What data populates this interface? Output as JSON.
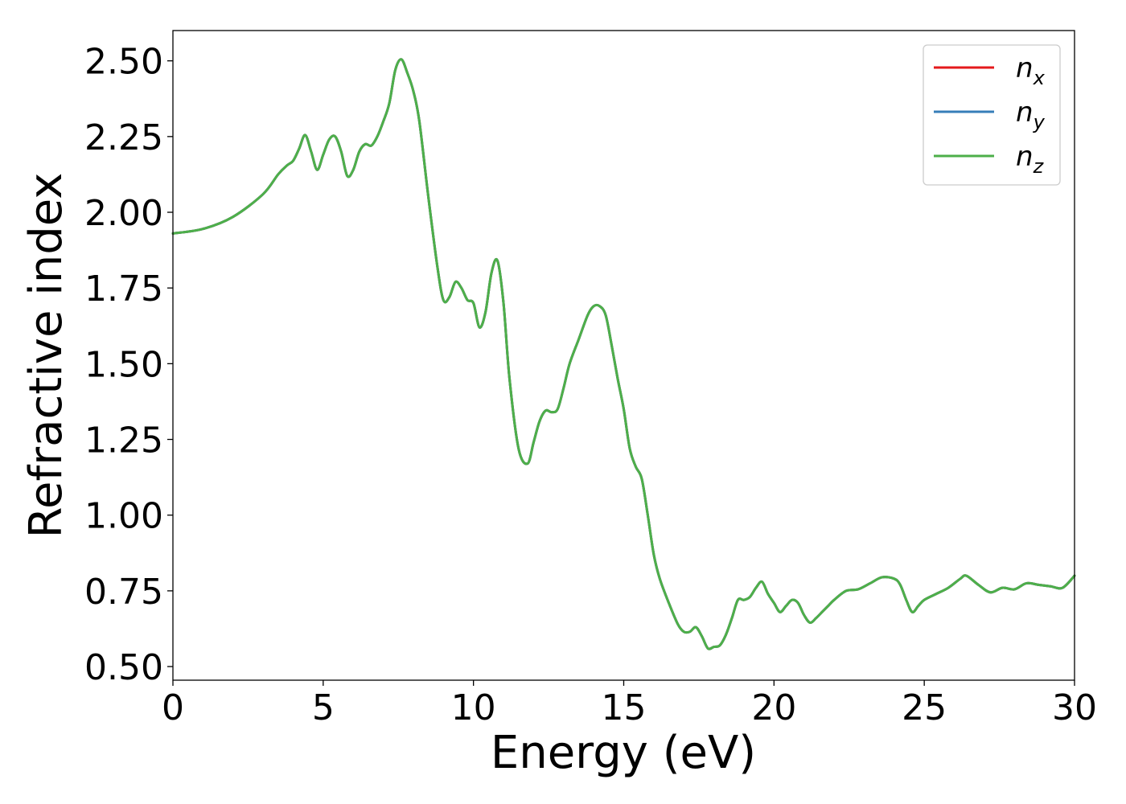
{
  "chart_data": {
    "type": "line",
    "title": "",
    "xlabel": "Energy (eV)",
    "ylabel": "Refractive index",
    "xlim": [
      0,
      30
    ],
    "ylim": [
      0.455,
      2.6
    ],
    "xticks": [
      0,
      5,
      10,
      15,
      20,
      25,
      30
    ],
    "xtick_labels": [
      "0",
      "5",
      "10",
      "15",
      "20",
      "25",
      "30"
    ],
    "yticks": [
      0.5,
      0.75,
      1.0,
      1.25,
      1.5,
      1.75,
      2.0,
      2.25,
      2.5
    ],
    "ytick_labels": [
      "0.50",
      "0.75",
      "1.00",
      "1.25",
      "1.50",
      "1.75",
      "2.00",
      "2.25",
      "2.50"
    ],
    "grid": false,
    "legend_position": "top-right",
    "x": [
      0,
      1,
      2,
      3,
      3.5,
      3.8,
      4.0,
      4.2,
      4.4,
      4.6,
      4.8,
      5.0,
      5.2,
      5.4,
      5.6,
      5.8,
      6.0,
      6.2,
      6.4,
      6.6,
      6.8,
      7.0,
      7.2,
      7.4,
      7.6,
      7.8,
      8.0,
      8.2,
      8.5,
      8.8,
      9.0,
      9.2,
      9.4,
      9.6,
      9.8,
      10.0,
      10.2,
      10.4,
      10.6,
      10.8,
      11.0,
      11.2,
      11.5,
      11.8,
      12.0,
      12.2,
      12.4,
      12.6,
      12.8,
      13.0,
      13.2,
      13.5,
      13.8,
      14.0,
      14.2,
      14.4,
      14.6,
      14.8,
      15.0,
      15.2,
      15.4,
      15.6,
      15.8,
      16.0,
      16.2,
      16.5,
      16.8,
      17.0,
      17.2,
      17.4,
      17.6,
      17.8,
      18.0,
      18.2,
      18.4,
      18.6,
      18.8,
      19.0,
      19.2,
      19.4,
      19.6,
      19.8,
      20.0,
      20.2,
      20.4,
      20.6,
      20.8,
      21.0,
      21.2,
      21.4,
      21.6,
      21.8,
      22.0,
      22.4,
      22.8,
      23.2,
      23.6,
      24.0,
      24.2,
      24.4,
      24.6,
      24.8,
      25.0,
      25.4,
      25.8,
      26.2,
      26.4,
      26.8,
      27.2,
      27.6,
      28.0,
      28.4,
      28.8,
      29.2,
      29.6,
      30.0
    ],
    "series": [
      {
        "name": "n",
        "subscript": "x",
        "color": "#e41a1c",
        "y": [
          1.93,
          1.945,
          1.985,
          2.06,
          2.125,
          2.155,
          2.17,
          2.21,
          2.255,
          2.2,
          2.14,
          2.19,
          2.24,
          2.25,
          2.2,
          2.12,
          2.14,
          2.2,
          2.225,
          2.22,
          2.25,
          2.3,
          2.36,
          2.47,
          2.505,
          2.46,
          2.4,
          2.3,
          2.05,
          1.82,
          1.71,
          1.72,
          1.77,
          1.75,
          1.71,
          1.7,
          1.62,
          1.67,
          1.8,
          1.84,
          1.7,
          1.45,
          1.22,
          1.17,
          1.24,
          1.31,
          1.345,
          1.34,
          1.35,
          1.42,
          1.5,
          1.58,
          1.66,
          1.69,
          1.69,
          1.66,
          1.56,
          1.45,
          1.35,
          1.22,
          1.16,
          1.12,
          1.0,
          0.87,
          0.79,
          0.71,
          0.64,
          0.615,
          0.615,
          0.63,
          0.6,
          0.56,
          0.565,
          0.57,
          0.605,
          0.66,
          0.72,
          0.72,
          0.73,
          0.76,
          0.78,
          0.74,
          0.71,
          0.68,
          0.7,
          0.72,
          0.71,
          0.67,
          0.645,
          0.66,
          0.68,
          0.7,
          0.72,
          0.75,
          0.755,
          0.775,
          0.795,
          0.79,
          0.77,
          0.72,
          0.68,
          0.7,
          0.72,
          0.74,
          0.76,
          0.79,
          0.8,
          0.77,
          0.745,
          0.76,
          0.755,
          0.775,
          0.77,
          0.765,
          0.76,
          0.8
        ]
      },
      {
        "name": "n",
        "subscript": "y",
        "color": "#377eb8",
        "y": [
          1.93,
          1.945,
          1.985,
          2.06,
          2.125,
          2.155,
          2.17,
          2.21,
          2.255,
          2.2,
          2.14,
          2.19,
          2.24,
          2.25,
          2.2,
          2.12,
          2.14,
          2.2,
          2.225,
          2.22,
          2.25,
          2.3,
          2.36,
          2.47,
          2.505,
          2.46,
          2.4,
          2.3,
          2.05,
          1.82,
          1.71,
          1.72,
          1.77,
          1.75,
          1.71,
          1.7,
          1.62,
          1.67,
          1.8,
          1.84,
          1.7,
          1.45,
          1.22,
          1.17,
          1.24,
          1.31,
          1.345,
          1.34,
          1.35,
          1.42,
          1.5,
          1.58,
          1.66,
          1.69,
          1.69,
          1.66,
          1.56,
          1.45,
          1.35,
          1.22,
          1.16,
          1.12,
          1.0,
          0.87,
          0.79,
          0.71,
          0.64,
          0.615,
          0.615,
          0.63,
          0.6,
          0.56,
          0.565,
          0.57,
          0.605,
          0.66,
          0.72,
          0.72,
          0.73,
          0.76,
          0.78,
          0.74,
          0.71,
          0.68,
          0.7,
          0.72,
          0.71,
          0.67,
          0.645,
          0.66,
          0.68,
          0.7,
          0.72,
          0.75,
          0.755,
          0.775,
          0.795,
          0.79,
          0.77,
          0.72,
          0.68,
          0.7,
          0.72,
          0.74,
          0.76,
          0.79,
          0.8,
          0.77,
          0.745,
          0.76,
          0.755,
          0.775,
          0.77,
          0.765,
          0.76,
          0.8
        ]
      },
      {
        "name": "n",
        "subscript": "z",
        "color": "#4daf4a",
        "y": [
          1.93,
          1.945,
          1.985,
          2.06,
          2.125,
          2.155,
          2.17,
          2.21,
          2.255,
          2.2,
          2.14,
          2.19,
          2.24,
          2.25,
          2.2,
          2.12,
          2.14,
          2.2,
          2.225,
          2.22,
          2.25,
          2.3,
          2.36,
          2.47,
          2.505,
          2.46,
          2.4,
          2.3,
          2.05,
          1.82,
          1.71,
          1.72,
          1.77,
          1.75,
          1.71,
          1.7,
          1.62,
          1.67,
          1.8,
          1.84,
          1.7,
          1.45,
          1.22,
          1.17,
          1.24,
          1.31,
          1.345,
          1.34,
          1.35,
          1.42,
          1.5,
          1.58,
          1.66,
          1.69,
          1.69,
          1.66,
          1.56,
          1.45,
          1.35,
          1.22,
          1.16,
          1.12,
          1.0,
          0.87,
          0.79,
          0.71,
          0.64,
          0.615,
          0.615,
          0.63,
          0.6,
          0.56,
          0.565,
          0.57,
          0.605,
          0.66,
          0.72,
          0.72,
          0.73,
          0.76,
          0.78,
          0.74,
          0.71,
          0.68,
          0.7,
          0.72,
          0.71,
          0.67,
          0.645,
          0.66,
          0.68,
          0.7,
          0.72,
          0.75,
          0.755,
          0.775,
          0.795,
          0.79,
          0.77,
          0.72,
          0.68,
          0.7,
          0.72,
          0.74,
          0.76,
          0.79,
          0.8,
          0.77,
          0.745,
          0.76,
          0.755,
          0.775,
          0.77,
          0.765,
          0.76,
          0.8
        ]
      }
    ]
  }
}
